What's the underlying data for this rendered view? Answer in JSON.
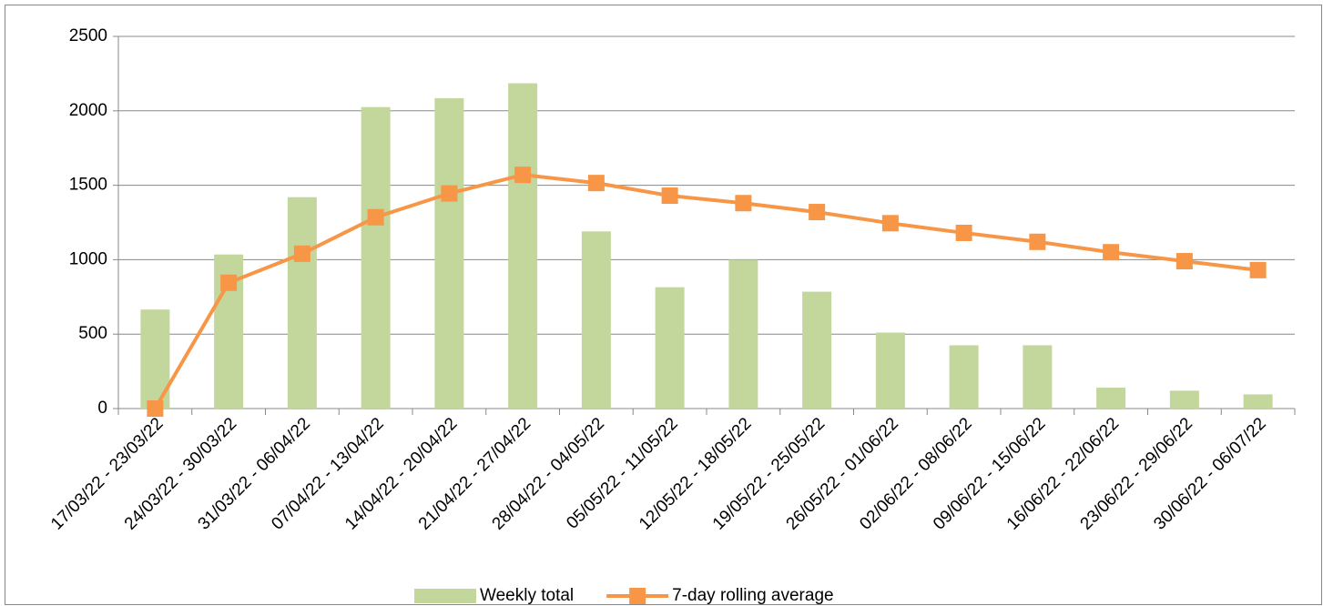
{
  "chart_data": {
    "type": "bar-line",
    "categories": [
      "17/03/22 - 23/03/22",
      "24/03/22 - 30/03/22",
      "31/03/22 - 06/04/22",
      "07/04/22 - 13/04/22",
      "14/04/22 - 20/04/22",
      "21/04/22 - 27/04/22",
      "28/04/22 - 04/05/22",
      "05/05/22 - 11/05/22",
      "12/05/22 - 18/05/22",
      "19/05/22 - 25/05/22",
      "26/05/22 - 01/06/22",
      "02/06/22 - 08/06/22",
      "09/06/22 - 15/06/22",
      "16/06/22 - 22/06/22",
      "23/06/22 - 29/06/22",
      "30/06/22 - 06/07/22"
    ],
    "series": [
      {
        "name": "Weekly total",
        "type": "bar",
        "color": "#c3d69b",
        "values": [
          665,
          1035,
          1420,
          2025,
          2085,
          2185,
          1190,
          815,
          1000,
          785,
          510,
          425,
          425,
          140,
          120,
          95
        ]
      },
      {
        "name": "7-day rolling average",
        "type": "line",
        "color": "#f79646",
        "values": [
          0,
          845,
          1040,
          1285,
          1445,
          1570,
          1515,
          1430,
          1380,
          1320,
          1245,
          1180,
          1120,
          1050,
          990,
          930
        ]
      }
    ],
    "ylim": [
      0,
      2500
    ],
    "yticks": [
      0,
      500,
      1000,
      1500,
      2000,
      2500
    ],
    "grid": true,
    "legend": "bottom"
  }
}
